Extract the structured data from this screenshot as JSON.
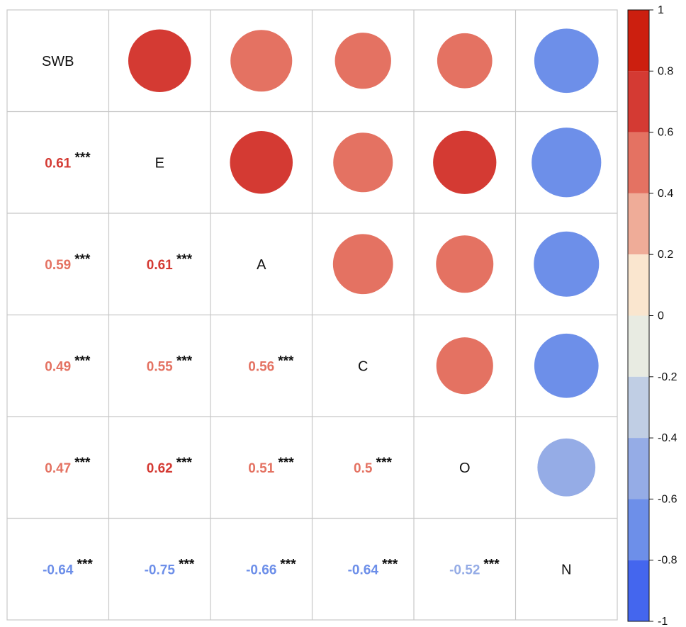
{
  "chart_data": {
    "type": "heatmap",
    "variables": [
      "SWB",
      "E",
      "A",
      "C",
      "O",
      "N"
    ],
    "lower_triangle": "numbers",
    "upper_triangle": "circles",
    "correlations": [
      [
        1,
        0.61,
        0.59,
        0.49,
        0.47,
        -0.64
      ],
      [
        0.61,
        1,
        0.61,
        0.55,
        0.62,
        -0.75
      ],
      [
        0.59,
        0.61,
        1,
        0.56,
        0.51,
        -0.66
      ],
      [
        0.49,
        0.55,
        0.56,
        1,
        0.5,
        -0.64
      ],
      [
        0.47,
        0.62,
        0.51,
        0.5,
        1,
        -0.52
      ],
      [
        -0.64,
        -0.75,
        -0.66,
        -0.64,
        -0.52,
        1
      ]
    ],
    "lower_labels": [
      {
        "row": 1,
        "col": 0,
        "text": "0.61",
        "stars": "***"
      },
      {
        "row": 2,
        "col": 0,
        "text": "0.59",
        "stars": "***"
      },
      {
        "row": 2,
        "col": 1,
        "text": "0.61",
        "stars": "***"
      },
      {
        "row": 3,
        "col": 0,
        "text": "0.49",
        "stars": "***"
      },
      {
        "row": 3,
        "col": 1,
        "text": "0.55",
        "stars": "***"
      },
      {
        "row": 3,
        "col": 2,
        "text": "0.56",
        "stars": "***"
      },
      {
        "row": 4,
        "col": 0,
        "text": "0.47",
        "stars": "***"
      },
      {
        "row": 4,
        "col": 1,
        "text": "0.62",
        "stars": "***"
      },
      {
        "row": 4,
        "col": 2,
        "text": "0.51",
        "stars": "***"
      },
      {
        "row": 4,
        "col": 3,
        "text": "0.5",
        "stars": "***"
      },
      {
        "row": 5,
        "col": 0,
        "text": "-0.64",
        "stars": "***"
      },
      {
        "row": 5,
        "col": 1,
        "text": "-0.75",
        "stars": "***"
      },
      {
        "row": 5,
        "col": 2,
        "text": "-0.66",
        "stars": "***"
      },
      {
        "row": 5,
        "col": 3,
        "text": "-0.64",
        "stars": "***"
      },
      {
        "row": 5,
        "col": 4,
        "text": "-0.52",
        "stars": "***"
      }
    ],
    "legend": {
      "placement": "right",
      "range": [
        -1,
        1
      ],
      "tick_values": [
        1,
        0.8,
        0.6,
        0.4,
        0.2,
        0,
        -0.2,
        -0.4,
        -0.6,
        -0.8,
        -1
      ],
      "tick_labels": [
        "1",
        "0.8",
        "0.6",
        "0.4",
        "0.2",
        "0",
        "-0.2",
        "-0.4",
        "-0.6",
        "-0.8",
        "-1"
      ],
      "bins": [
        {
          "from": 0.8,
          "to": 1.0,
          "color": "#cc1f0f"
        },
        {
          "from": 0.6,
          "to": 0.8,
          "color": "#d43a33"
        },
        {
          "from": 0.4,
          "to": 0.6,
          "color": "#e47262"
        },
        {
          "from": 0.2,
          "to": 0.4,
          "color": "#efac98"
        },
        {
          "from": 0.0,
          "to": 0.2,
          "color": "#fae6cf"
        },
        {
          "from": -0.2,
          "to": 0.0,
          "color": "#e8ebe2"
        },
        {
          "from": -0.4,
          "to": -0.2,
          "color": "#c0cee4"
        },
        {
          "from": -0.6,
          "to": -0.4,
          "color": "#95ace6"
        },
        {
          "from": -0.8,
          "to": -0.6,
          "color": "#6d8fe9"
        },
        {
          "from": -1.0,
          "to": -0.8,
          "color": "#4466ee"
        }
      ]
    },
    "star_color": "#111111",
    "grid_color": "#c8c8c8"
  }
}
